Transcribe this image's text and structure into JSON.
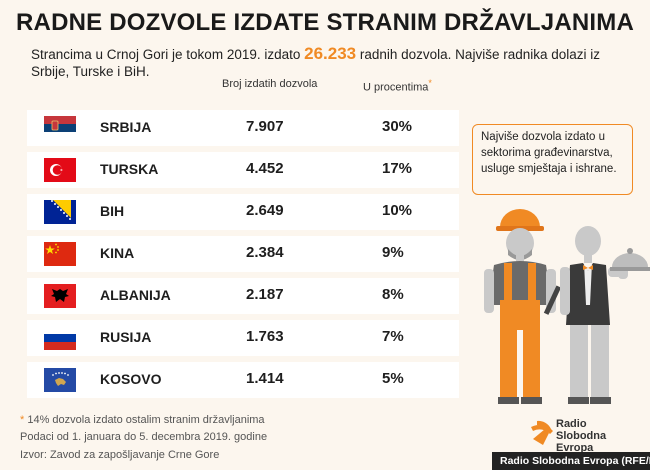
{
  "title": "RADNE DOZVOLE IZDATE STRANIM DRŽAVLJANIMA",
  "intro": {
    "before": "Strancima u Crnoj Gori je tokom 2019. izdato ",
    "highlight": "26.233",
    "after": " radnih dozvola. Najviše radnika dolazi iz Srbije, Turske i BiH."
  },
  "columns": {
    "count": "Broj izdatih dozvola",
    "percent": "U procentima",
    "asterisk": "*"
  },
  "callout": "Najviše dozvola izdato u sektorima građevinarstva, usluge smještaja i ishrane.",
  "footnotes": {
    "note_asterisk": "*",
    "note": " 14% dozvola izdato ostalim stranim državljanima",
    "period": "Podaci od 1. januara do 5. decembra 2019. godine",
    "source": "Izvor: Zavod za zapošljavanje Crne Gore"
  },
  "logo": {
    "line1": "Radio Slobodna",
    "line2": "Evropa"
  },
  "credit": "Radio Slobodna Evropa (RFE/RL)",
  "colors": {
    "accent": "#f08a24",
    "background": "#fcf6ee",
    "row": "#ffffff"
  },
  "chart_data": {
    "type": "table",
    "title": "RADNE DOZVOLE IZDATE STRANIM DRŽAVLJANIMA",
    "columns": [
      "",
      "Broj izdatih dozvola",
      "U procentima"
    ],
    "rows": [
      {
        "country": "SRBIJA",
        "count": "7.907",
        "percent": "30%",
        "flag": "serbia-flag"
      },
      {
        "country": "TURSKA",
        "count": "4.452",
        "percent": "17%",
        "flag": "turkey-flag"
      },
      {
        "country": "BIH",
        "count": "2.649",
        "percent": "10%",
        "flag": "bih-flag"
      },
      {
        "country": "KINA",
        "count": "2.384",
        "percent": "9%",
        "flag": "china-flag"
      },
      {
        "country": "ALBANIJA",
        "count": "2.187",
        "percent": "8%",
        "flag": "albania-flag"
      },
      {
        "country": "RUSIJA",
        "count": "1.763",
        "percent": "7%",
        "flag": "russia-flag"
      },
      {
        "country": "KOSOVO",
        "count": "1.414",
        "percent": "5%",
        "flag": "kosovo-flag"
      }
    ]
  }
}
